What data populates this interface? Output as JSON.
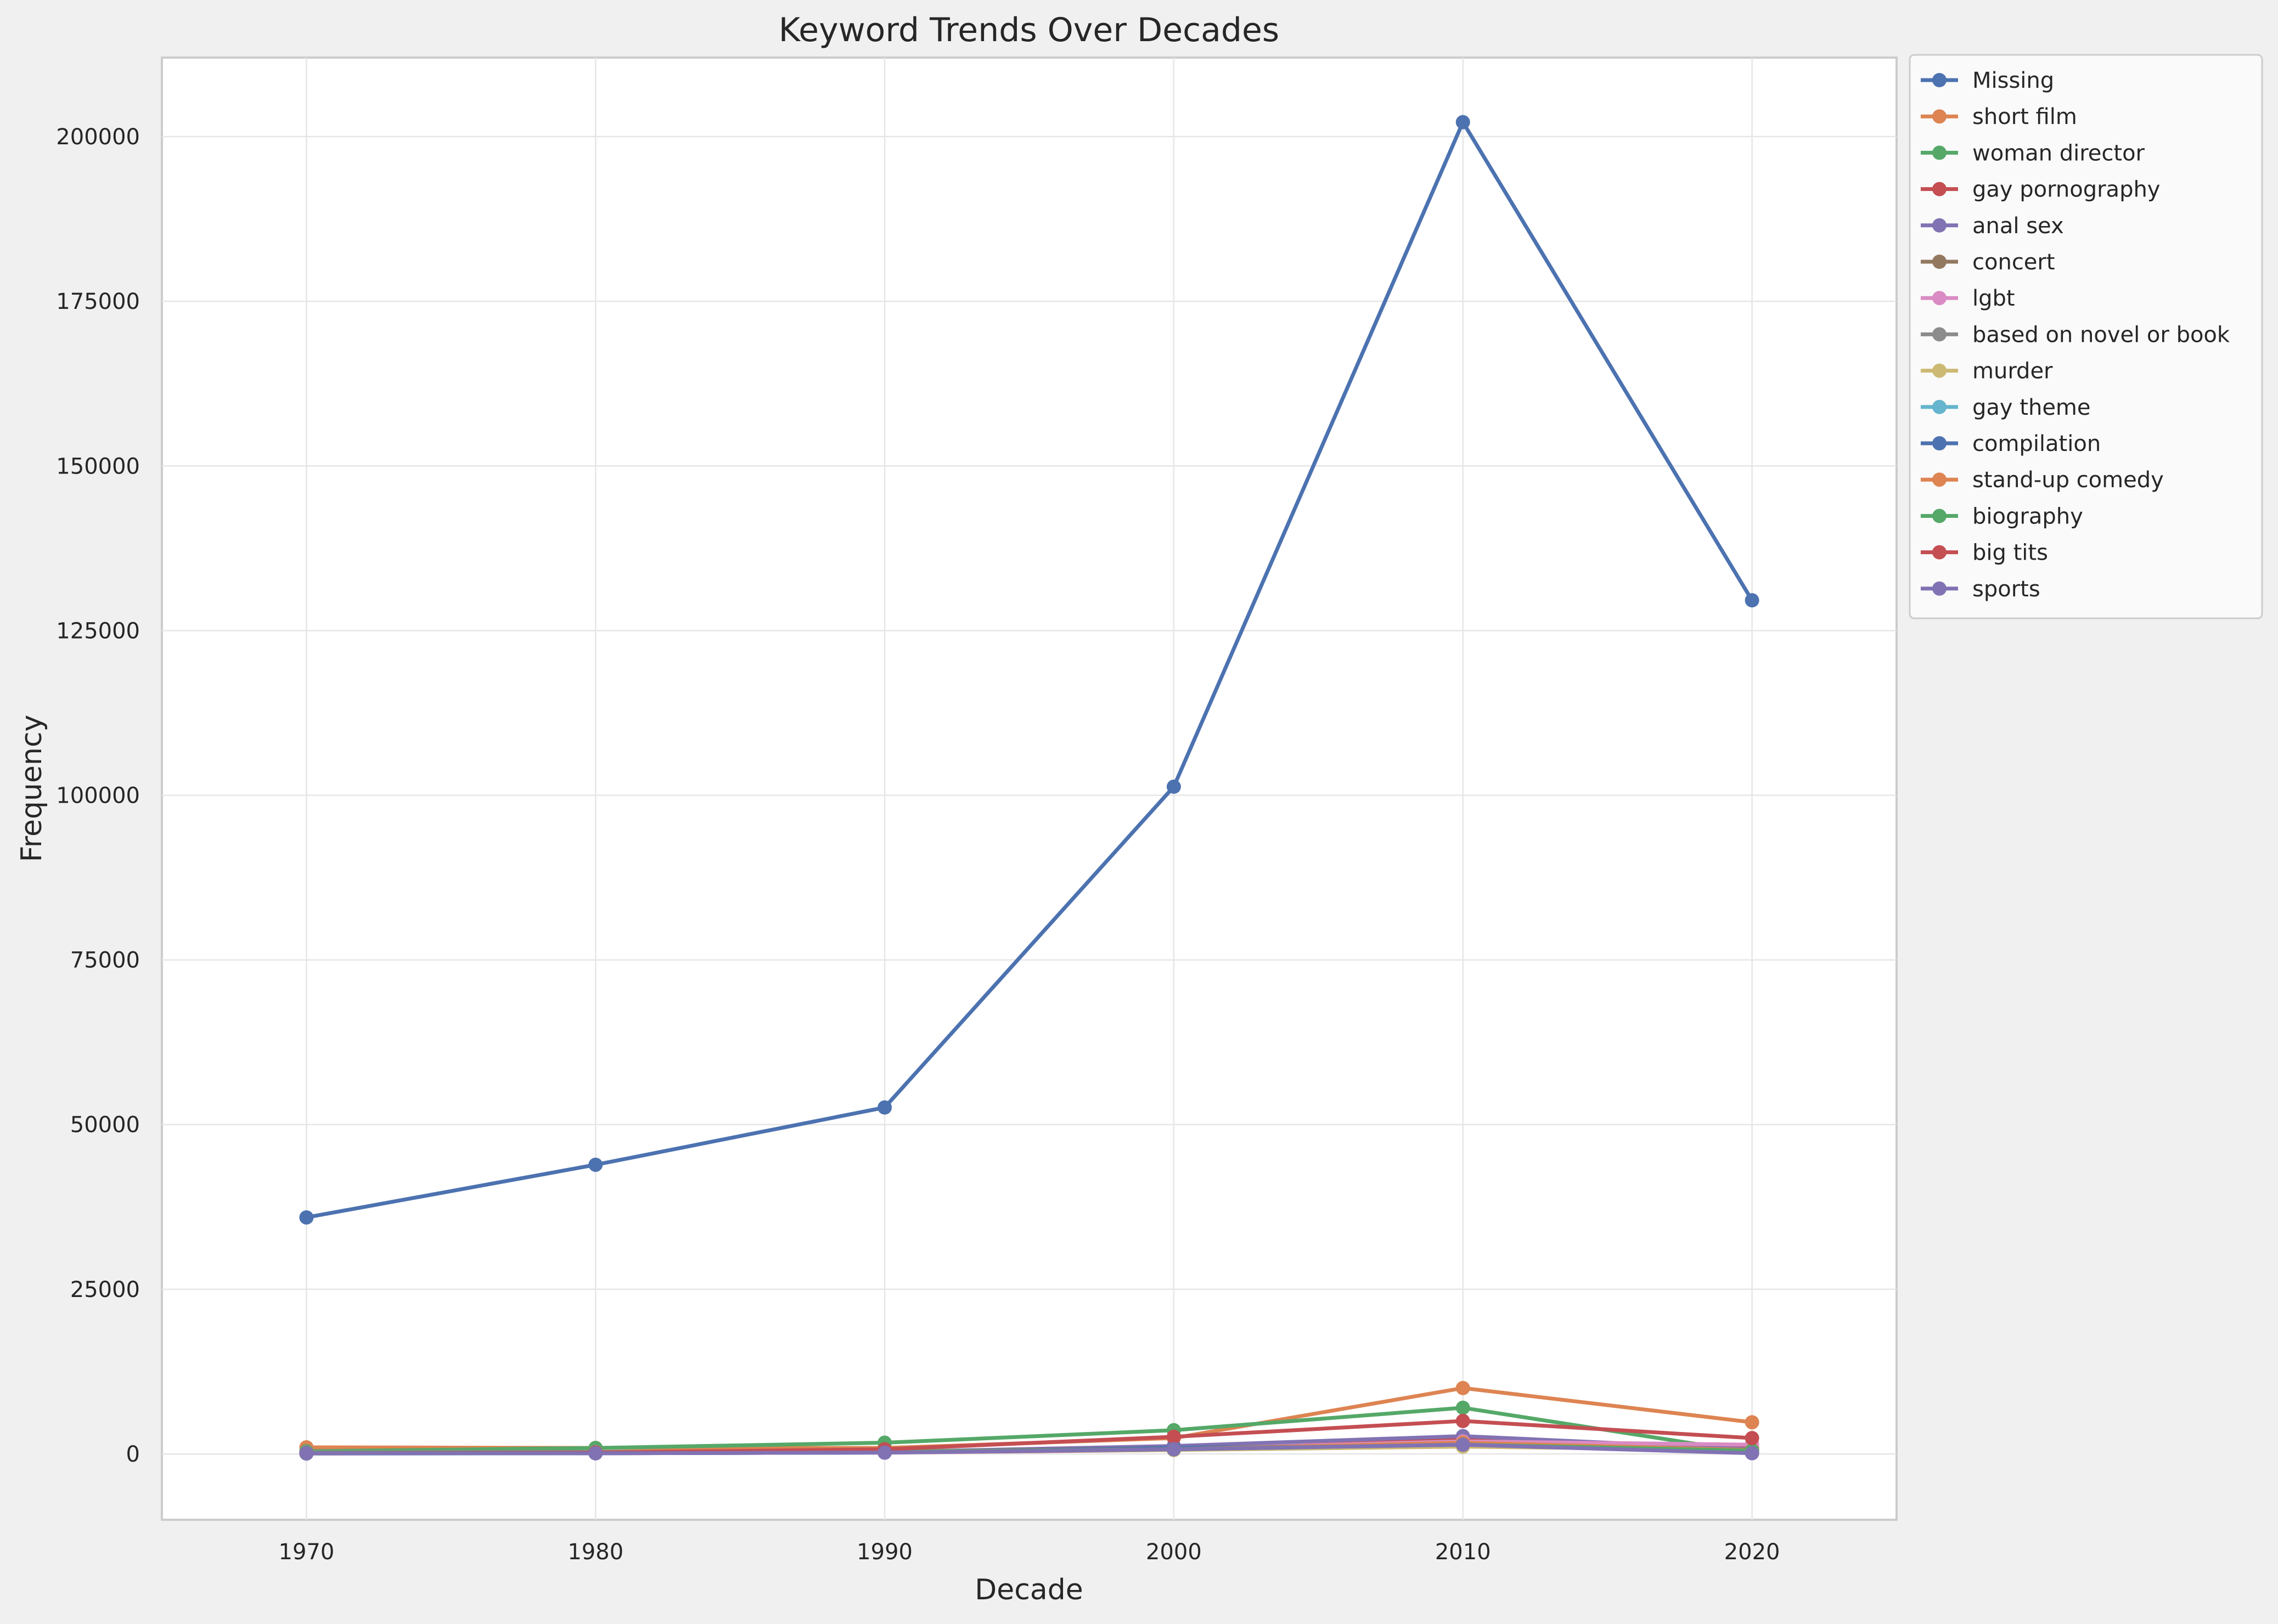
{
  "chart_data": {
    "type": "line",
    "title": "Keyword Trends Over Decades",
    "xlabel": "Decade",
    "ylabel": "Frequency",
    "x": [
      1970,
      1980,
      1990,
      2000,
      2010,
      2020
    ],
    "x_ticks": [
      "1970",
      "1980",
      "1990",
      "2000",
      "2010",
      "2020"
    ],
    "ylim": [
      -10000,
      212000
    ],
    "y_ticks": [
      0,
      25000,
      50000,
      75000,
      100000,
      125000,
      150000,
      175000,
      200000
    ],
    "y_tick_labels": [
      "0",
      "25000",
      "50000",
      "75000",
      "100000",
      "125000",
      "150000",
      "175000",
      "200000"
    ],
    "grid": true,
    "legend_position": "upper right, outside the plot area",
    "series": [
      {
        "name": "Missing",
        "color": "#4c72b0",
        "values": [
          35900,
          43900,
          52600,
          101300,
          202200,
          129600
        ]
      },
      {
        "name": "short film",
        "color": "#dd8452",
        "values": [
          1000,
          900,
          900,
          2400,
          10000,
          4800
        ]
      },
      {
        "name": "woman director",
        "color": "#55a868",
        "values": [
          400,
          900,
          1700,
          3600,
          7000,
          200
        ]
      },
      {
        "name": "gay pornography",
        "color": "#c44e52",
        "values": [
          100,
          100,
          200,
          600,
          2200,
          900
        ]
      },
      {
        "name": "anal sex",
        "color": "#8172b3",
        "values": [
          100,
          100,
          300,
          1200,
          2700,
          700
        ]
      },
      {
        "name": "concert",
        "color": "#937860",
        "values": [
          200,
          200,
          300,
          900,
          1600,
          400
        ]
      },
      {
        "name": "lgbt",
        "color": "#da8bc3",
        "values": [
          50,
          100,
          200,
          800,
          1900,
          1400
        ]
      },
      {
        "name": "based on novel or book",
        "color": "#8c8c8c",
        "values": [
          300,
          300,
          400,
          700,
          1300,
          500
        ]
      },
      {
        "name": "murder",
        "color": "#ccb974",
        "values": [
          200,
          200,
          300,
          600,
          1100,
          600
        ]
      },
      {
        "name": "gay theme",
        "color": "#64b5cd",
        "values": [
          50,
          100,
          200,
          700,
          1500,
          500
        ]
      },
      {
        "name": "compilation",
        "color": "#4c72b0",
        "values": [
          100,
          100,
          200,
          900,
          1500,
          300
        ]
      },
      {
        "name": "stand-up comedy",
        "color": "#dd8452",
        "values": [
          100,
          200,
          300,
          700,
          1700,
          600
        ]
      },
      {
        "name": "biography",
        "color": "#55a868",
        "values": [
          200,
          200,
          300,
          700,
          1400,
          500
        ]
      },
      {
        "name": "big tits",
        "color": "#c44e52",
        "values": [
          100,
          200,
          700,
          2600,
          5000,
          2400
        ]
      },
      {
        "name": "sports",
        "color": "#8172b3",
        "values": [
          100,
          100,
          200,
          700,
          1400,
          100
        ]
      }
    ]
  }
}
